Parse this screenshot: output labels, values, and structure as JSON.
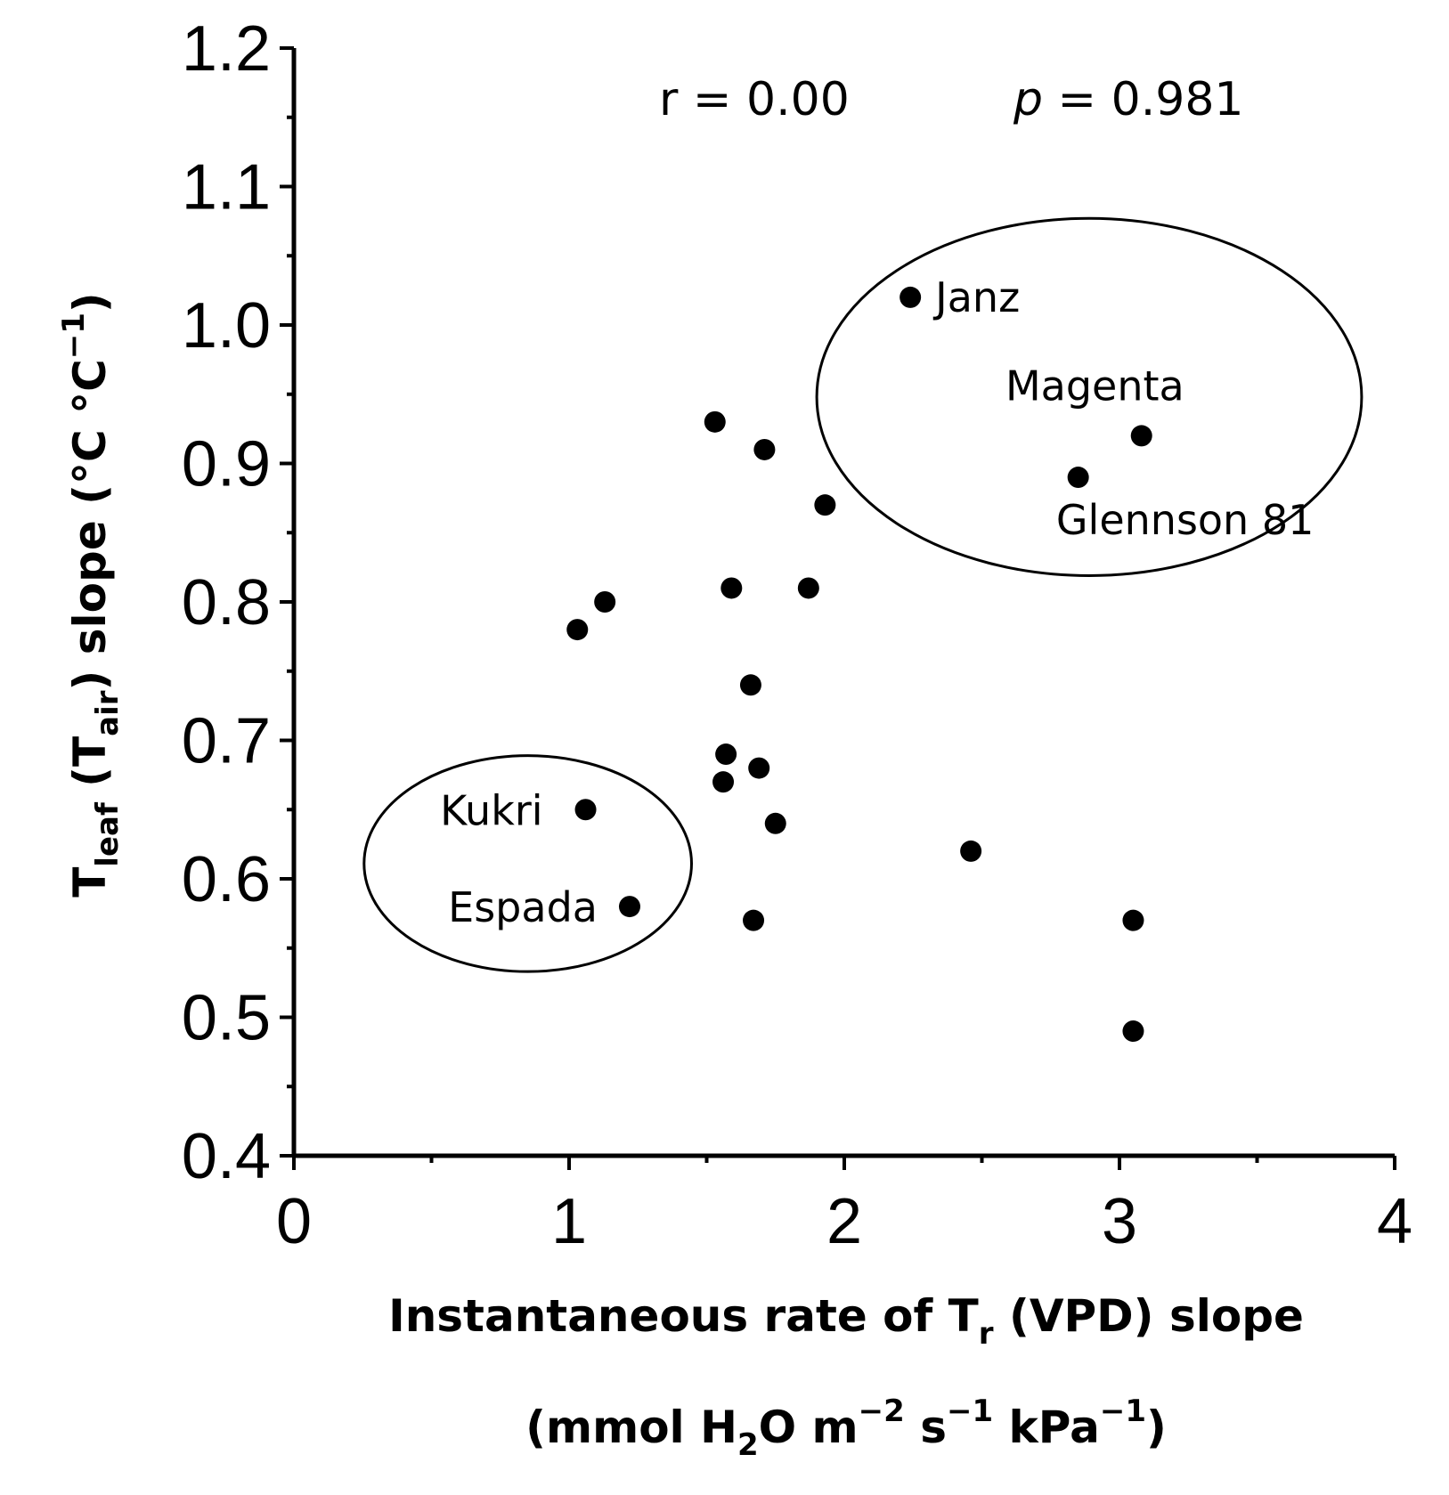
{
  "chart_data": {
    "type": "scatter",
    "xlim": [
      0,
      4
    ],
    "ylim": [
      0.4,
      1.2
    ],
    "x_ticks": [
      "0",
      "1",
      "2",
      "3",
      "4"
    ],
    "y_ticks": [
      "0.4",
      "0.5",
      "0.6",
      "0.7",
      "0.8",
      "0.9",
      "1.0",
      "1.1",
      "1.2"
    ],
    "x_tick_values": [
      0,
      1,
      2,
      3,
      4
    ],
    "y_tick_values": [
      0.4,
      0.5,
      0.6,
      0.7,
      0.8,
      0.9,
      1.0,
      1.1,
      1.2
    ],
    "xlabel_line1": "Instantaneous rate of T",
    "xlabel_line1_sub": "r",
    "xlabel_line1_rest": " (VPD) slope",
    "xlabel_line2_a": "(mmol H",
    "xlabel_line2_sub": "2",
    "xlabel_line2_b": "O m",
    "xlabel_line2_sup1": "−2",
    "xlabel_line2_c": " s",
    "xlabel_line2_sup2": "−1",
    "xlabel_line2_d": " kPa",
    "xlabel_line2_sup3": "−1",
    "xlabel_line2_e": ")",
    "ylabel_T": "T",
    "ylabel_sub1": "leaf",
    "ylabel_mid": " (T",
    "ylabel_sub2": "air",
    "ylabel_rest": ") slope (°C °C",
    "ylabel_sup": "−1",
    "ylabel_end": ")",
    "r_text": "r = 0.00",
    "p_label": "p",
    "p_text": " =  0.981",
    "points": [
      {
        "x": 2.24,
        "y": 1.02,
        "label": "Janz"
      },
      {
        "x": 3.08,
        "y": 0.92,
        "label": "Magenta"
      },
      {
        "x": 2.85,
        "y": 0.89,
        "label": "Glennson 81"
      },
      {
        "x": 1.53,
        "y": 0.93
      },
      {
        "x": 1.71,
        "y": 0.91
      },
      {
        "x": 1.93,
        "y": 0.87
      },
      {
        "x": 1.59,
        "y": 0.81
      },
      {
        "x": 1.87,
        "y": 0.81
      },
      {
        "x": 1.13,
        "y": 0.8
      },
      {
        "x": 1.03,
        "y": 0.78
      },
      {
        "x": 1.66,
        "y": 0.74
      },
      {
        "x": 1.57,
        "y": 0.69
      },
      {
        "x": 1.69,
        "y": 0.68
      },
      {
        "x": 1.56,
        "y": 0.67
      },
      {
        "x": 1.06,
        "y": 0.65,
        "label": "Kukri"
      },
      {
        "x": 1.75,
        "y": 0.64
      },
      {
        "x": 2.46,
        "y": 0.62
      },
      {
        "x": 1.22,
        "y": 0.58,
        "label": "Espada"
      },
      {
        "x": 1.67,
        "y": 0.57
      },
      {
        "x": 3.05,
        "y": 0.57
      },
      {
        "x": 3.05,
        "y": 0.49
      }
    ],
    "groups": [
      {
        "cx": 2.89,
        "cy": 0.948,
        "rx": 0.99,
        "ry": 0.129
      },
      {
        "cx": 0.85,
        "cy": 0.611,
        "rx": 0.595,
        "ry": 0.078
      }
    ]
  }
}
